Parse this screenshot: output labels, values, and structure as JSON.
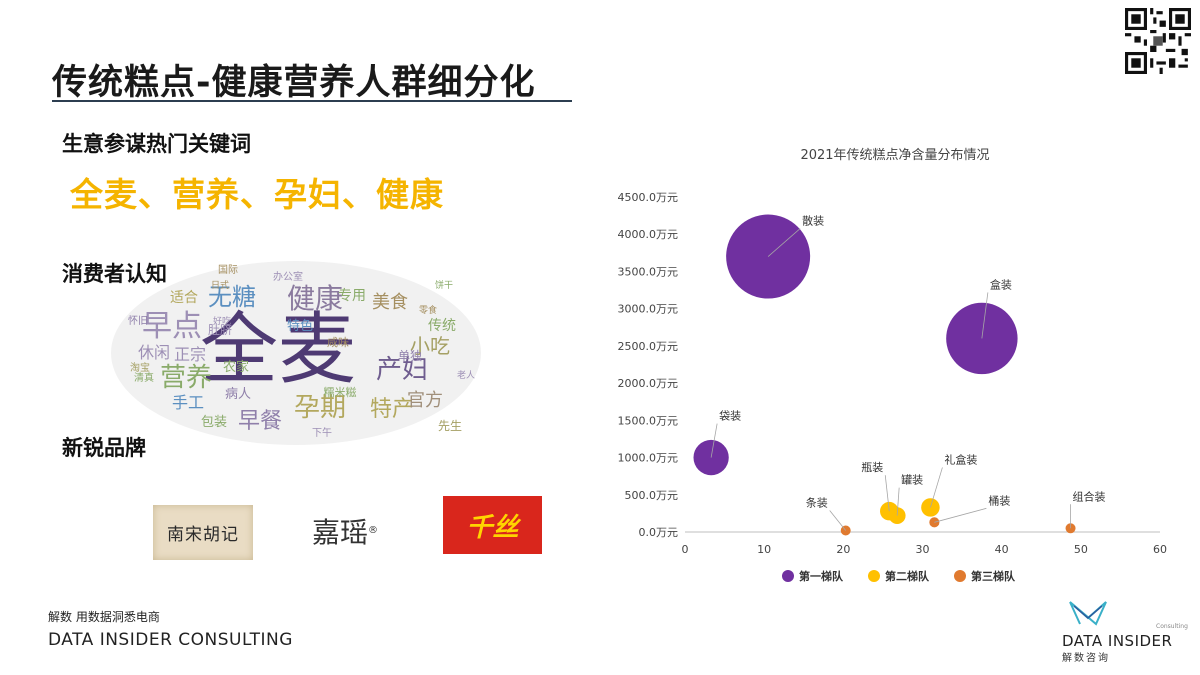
{
  "slide": {
    "title": "传统糕点-健康营养人群细分化",
    "section_keywords_label": "生意参谋热门关键词",
    "keywords": "全麦、营养、孕妇、健康",
    "section_consumer_label": "消费者认知",
    "section_brands_label": "新锐品牌",
    "footer_cn": "解数 用数据洞悉电商",
    "footer_en": "DATA INSIDER CONSULTING"
  },
  "brands": [
    {
      "name": "南宋胡记"
    },
    {
      "name": "嘉瑶",
      "mark": "®"
    },
    {
      "name": "千丝"
    }
  ],
  "corp_logo": {
    "name": "DATA INSIDER",
    "cn": "解数咨询",
    "small": "Consulting"
  },
  "wordcloud": {
    "words": [
      {
        "text": "全麦",
        "color": "#4e3a73"
      },
      {
        "text": "健康",
        "color": "#8a7a9e"
      },
      {
        "text": "无糖",
        "color": "#5b8fc0"
      },
      {
        "text": "早点",
        "color": "#9d8fb5"
      },
      {
        "text": "孕期",
        "color": "#b3a85e"
      },
      {
        "text": "特产",
        "color": "#b3a85e"
      },
      {
        "text": "营养",
        "color": "#8aab6a"
      },
      {
        "text": "产妇",
        "color": "#6f5d8f"
      },
      {
        "text": "早餐",
        "color": "#8f7faa"
      },
      {
        "text": "小吃",
        "color": "#a5a064"
      },
      {
        "text": "美食",
        "color": "#a58f60"
      },
      {
        "text": "专用",
        "color": "#8aab6a"
      },
      {
        "text": "官方",
        "color": "#a08f7a"
      },
      {
        "text": "手工",
        "color": "#5b8fc0"
      },
      {
        "text": "休闲",
        "color": "#9d8fb5"
      },
      {
        "text": "正宗",
        "color": "#9d8fb5"
      },
      {
        "text": "传统",
        "color": "#8aab6a"
      },
      {
        "text": "适合",
        "color": "#b3a85e"
      },
      {
        "text": "特色",
        "color": "#5b8fc0"
      },
      {
        "text": "包装",
        "color": "#8aab6a"
      },
      {
        "text": "肚脐",
        "color": "#9d8fb5"
      },
      {
        "text": "农家",
        "color": "#8aab6a"
      },
      {
        "text": "病人",
        "color": "#8f7faa"
      },
      {
        "text": "糯米糍",
        "color": "#8aab6a"
      },
      {
        "text": "咸味",
        "color": "#a58f60"
      },
      {
        "text": "先生",
        "color": "#a5a064"
      },
      {
        "text": "单独",
        "color": "#8f7faa"
      },
      {
        "text": "国际",
        "color": "#a58f60"
      },
      {
        "text": "办公室",
        "color": "#9d8fb5"
      },
      {
        "text": "淘宝",
        "color": "#a5a064"
      },
      {
        "text": "怀旧",
        "color": "#8f7faa"
      },
      {
        "text": "清真",
        "color": "#8aab6a"
      },
      {
        "text": "好吃",
        "color": "#9d8fb5"
      },
      {
        "text": "日式",
        "color": "#a58f60"
      },
      {
        "text": "下午",
        "color": "#9d8fb5"
      },
      {
        "text": "饼干",
        "color": "#8aab6a"
      },
      {
        "text": "零食",
        "color": "#a58f60"
      },
      {
        "text": "老人",
        "color": "#9d8fb5"
      }
    ]
  },
  "chart_data": {
    "type": "scatter",
    "title": "2021年传统糕点净含量分布情况",
    "xlim": [
      0,
      60
    ],
    "ylim": [
      0,
      4500
    ],
    "x_ticks": [
      "0",
      "10",
      "20",
      "30",
      "40",
      "50",
      "60"
    ],
    "y_ticks": [
      "0.0万元",
      "500.0万元",
      "1000.0万元",
      "1500.0万元",
      "2000.0万元",
      "2500.0万元",
      "3000.0万元",
      "3500.0万元",
      "4000.0万元",
      "4500.0万元"
    ],
    "grid": false,
    "legend_position": "bottom",
    "series": [
      {
        "name": "第一梯队",
        "color": "#7030a0",
        "points": [
          {
            "label": "散装",
            "x": 10.5,
            "y": 3700,
            "size": 1.0
          },
          {
            "label": "盒装",
            "x": 37.5,
            "y": 2600,
            "size": 0.85
          },
          {
            "label": "袋装",
            "x": 3.3,
            "y": 1000,
            "size": 0.42
          }
        ]
      },
      {
        "name": "第二梯队",
        "color": "#ffc000",
        "points": [
          {
            "label": "瓶装",
            "x": 25.8,
            "y": 280,
            "size": 0.22
          },
          {
            "label": "罐装",
            "x": 26.8,
            "y": 220,
            "size": 0.2
          },
          {
            "label": "礼盒装",
            "x": 31.0,
            "y": 330,
            "size": 0.22
          }
        ]
      },
      {
        "name": "第三梯队",
        "color": "#e07a2f",
        "points": [
          {
            "label": "条装",
            "x": 20.3,
            "y": 20,
            "size": 0.07
          },
          {
            "label": "桶装",
            "x": 31.5,
            "y": 130,
            "size": 0.12
          },
          {
            "label": "组合装",
            "x": 48.7,
            "y": 50,
            "size": 0.08
          }
        ]
      }
    ]
  }
}
